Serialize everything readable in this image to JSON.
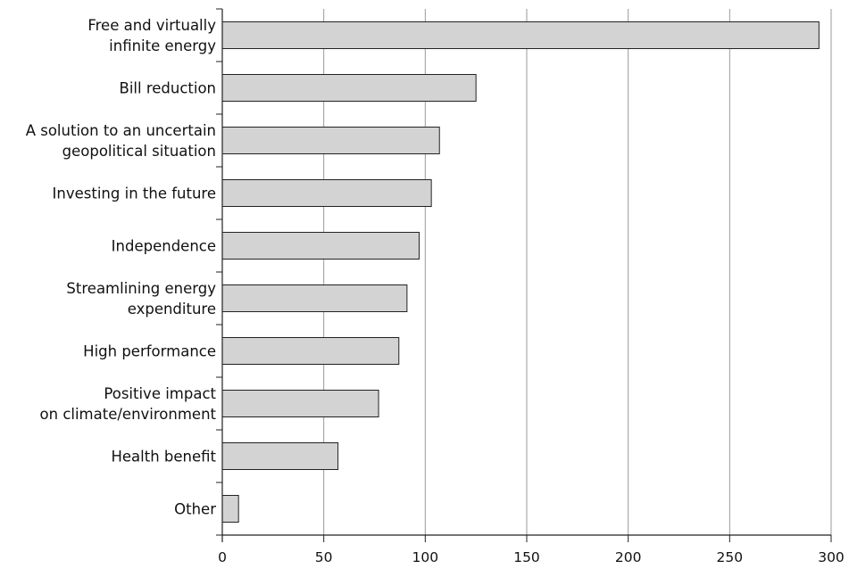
{
  "chart_data": {
    "type": "bar",
    "orientation": "horizontal",
    "categories": [
      [
        "Free and virtually",
        "infinite energy"
      ],
      [
        "Bill reduction"
      ],
      [
        "A solution to an uncertain",
        "geopolitical situation"
      ],
      [
        "Investing in the future"
      ],
      [
        "Independence"
      ],
      [
        "Streamlining energy",
        "expenditure"
      ],
      [
        "High performance"
      ],
      [
        "Positive impact",
        "on climate/environment"
      ],
      [
        "Health benefit"
      ],
      [
        "Other"
      ]
    ],
    "values": [
      294,
      125,
      107,
      103,
      97,
      91,
      87,
      77,
      57,
      8
    ],
    "xlim": [
      0,
      300
    ],
    "xticks": [
      0,
      50,
      100,
      150,
      200,
      250,
      300
    ],
    "title": "",
    "xlabel": "",
    "ylabel": "",
    "grid": "vertical",
    "colors": {
      "bar_fill": "#d3d3d3",
      "bar_stroke": "#222222",
      "grid": "#9a9a9a"
    }
  }
}
